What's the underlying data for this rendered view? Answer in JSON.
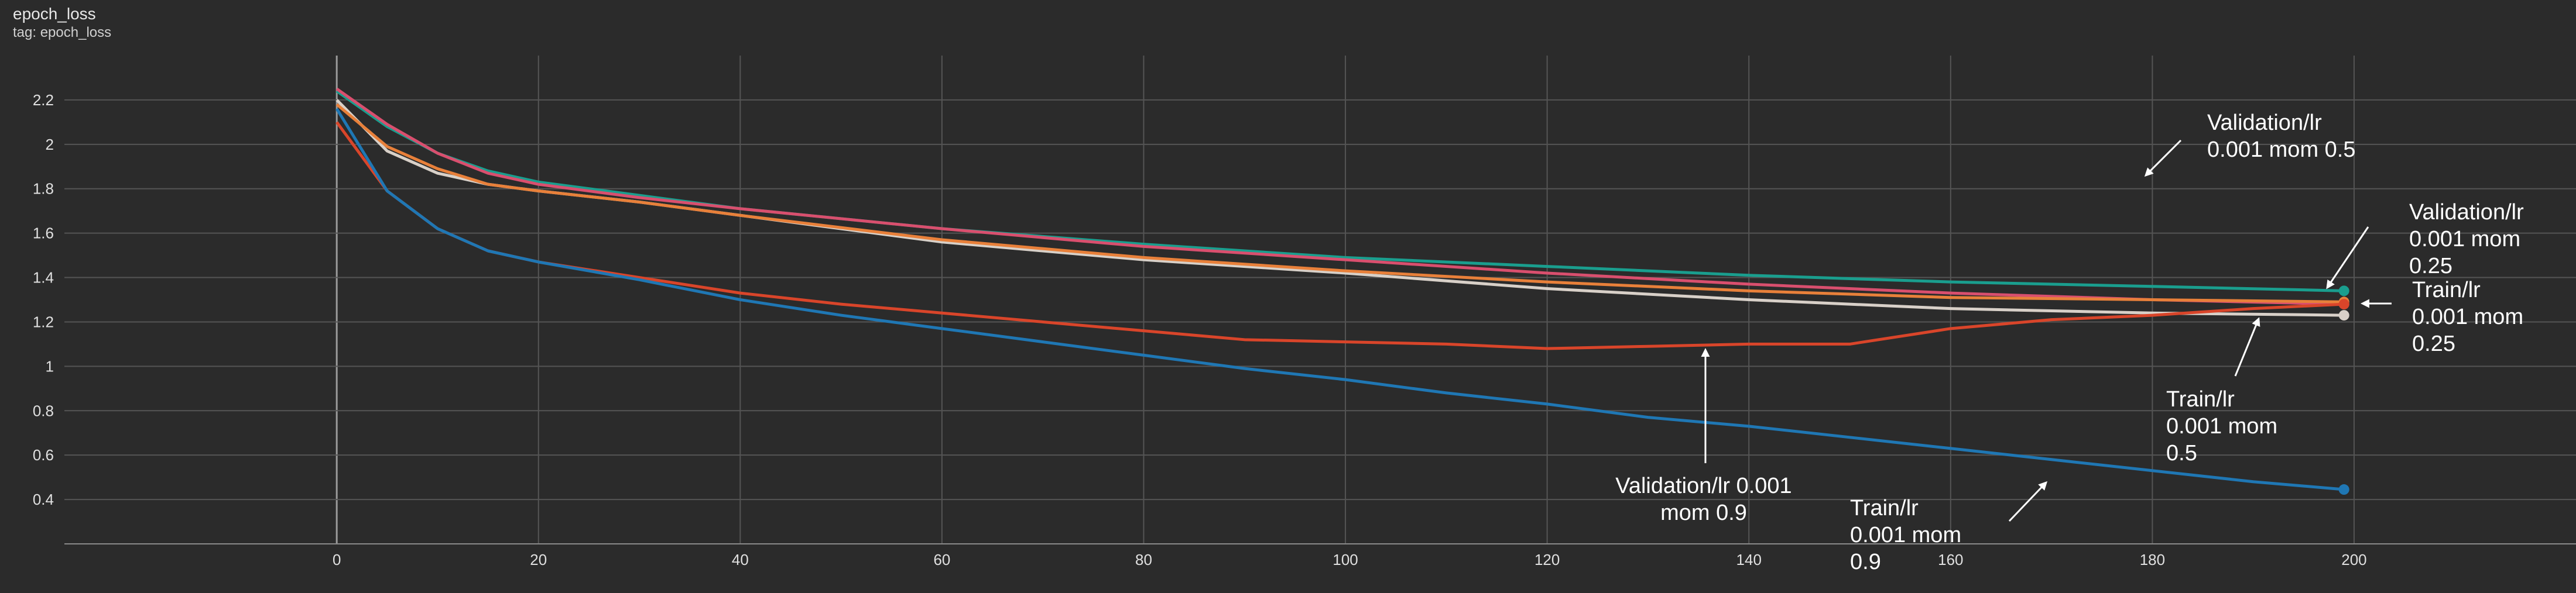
{
  "header": {
    "title": "epoch_loss",
    "tag": "tag: epoch_loss"
  },
  "chart_data": {
    "type": "line",
    "title": "epoch_loss",
    "subtitle": "tag: epoch_loss",
    "xlim": [
      -27,
      222
    ],
    "ylim": [
      0.2,
      2.4
    ],
    "xticks": [
      0,
      20,
      40,
      60,
      80,
      100,
      120,
      140,
      160,
      180,
      200
    ],
    "yticks": [
      0.4,
      0.6,
      0.8,
      1,
      1.2,
      1.4,
      1.6,
      1.8,
      2,
      2.2
    ],
    "grid": true,
    "background": "#2b2b2b",
    "grid_color": "#555555",
    "series": [
      {
        "name": "Validation/lr 0.001 mom 0.5",
        "color": "#1a9e8e",
        "x": [
          0,
          5,
          10,
          15,
          20,
          30,
          40,
          60,
          80,
          100,
          120,
          140,
          160,
          180,
          199
        ],
        "y": [
          2.24,
          2.08,
          1.96,
          1.88,
          1.83,
          1.77,
          1.71,
          1.62,
          1.55,
          1.49,
          1.45,
          1.41,
          1.38,
          1.36,
          1.34
        ]
      },
      {
        "name": "Validation/lr 0.001 mom 0.25",
        "color": "#d94f6e",
        "x": [
          0,
          5,
          10,
          15,
          20,
          30,
          40,
          60,
          80,
          100,
          120,
          140,
          160,
          180,
          199
        ],
        "y": [
          2.25,
          2.09,
          1.96,
          1.87,
          1.82,
          1.76,
          1.71,
          1.62,
          1.54,
          1.48,
          1.42,
          1.37,
          1.33,
          1.3,
          1.28
        ]
      },
      {
        "name": "Train/lr 0.001 mom 0.25",
        "color": "#d8d0c8",
        "x": [
          0,
          5,
          10,
          15,
          20,
          30,
          40,
          60,
          80,
          100,
          120,
          140,
          160,
          180,
          199
        ],
        "y": [
          2.2,
          1.97,
          1.87,
          1.82,
          1.79,
          1.74,
          1.68,
          1.56,
          1.48,
          1.42,
          1.35,
          1.3,
          1.26,
          1.24,
          1.23
        ]
      },
      {
        "name": "Train/lr 0.001 mom 0.5",
        "color": "#e8803a",
        "x": [
          0,
          5,
          10,
          15,
          20,
          30,
          40,
          60,
          80,
          100,
          120,
          140,
          160,
          180,
          199
        ],
        "y": [
          2.18,
          1.99,
          1.89,
          1.82,
          1.79,
          1.74,
          1.68,
          1.57,
          1.49,
          1.43,
          1.38,
          1.34,
          1.31,
          1.3,
          1.29
        ]
      },
      {
        "name": "Validation/lr 0.001 mom 0.9",
        "color": "#d9452a",
        "x": [
          0,
          5,
          10,
          15,
          20,
          30,
          40,
          50,
          60,
          70,
          80,
          90,
          100,
          110,
          120,
          130,
          140,
          150,
          160,
          170,
          180,
          190,
          199
        ],
        "y": [
          2.1,
          1.79,
          1.62,
          1.52,
          1.47,
          1.4,
          1.33,
          1.28,
          1.24,
          1.2,
          1.16,
          1.12,
          1.11,
          1.1,
          1.08,
          1.09,
          1.1,
          1.1,
          1.17,
          1.21,
          1.23,
          1.26,
          1.28
        ]
      },
      {
        "name": "Train/lr 0.001 mom 0.9",
        "color": "#1f77b4",
        "x": [
          0,
          5,
          10,
          15,
          20,
          30,
          40,
          50,
          60,
          70,
          80,
          90,
          100,
          110,
          120,
          130,
          140,
          150,
          160,
          170,
          180,
          190,
          199
        ],
        "y": [
          2.16,
          1.79,
          1.62,
          1.52,
          1.47,
          1.39,
          1.3,
          1.23,
          1.17,
          1.11,
          1.05,
          0.99,
          0.94,
          0.88,
          0.83,
          0.77,
          0.73,
          0.68,
          0.63,
          0.58,
          0.53,
          0.48,
          0.445
        ]
      }
    ],
    "annotations": [
      {
        "lines": [
          "Validation/lr",
          "0.001 mom 0.5"
        ]
      },
      {
        "lines": [
          "Validation/lr",
          "0.001 mom",
          "0.25"
        ]
      },
      {
        "lines": [
          "Train/lr",
          "0.001 mom",
          "0.25"
        ]
      },
      {
        "lines": [
          "Train/lr",
          "0.001 mom",
          "0.5"
        ]
      },
      {
        "lines": [
          "Validation/lr 0.001",
          "mom 0.9"
        ]
      },
      {
        "lines": [
          "Train/lr",
          "0.001 mom",
          "0.9"
        ]
      }
    ]
  }
}
